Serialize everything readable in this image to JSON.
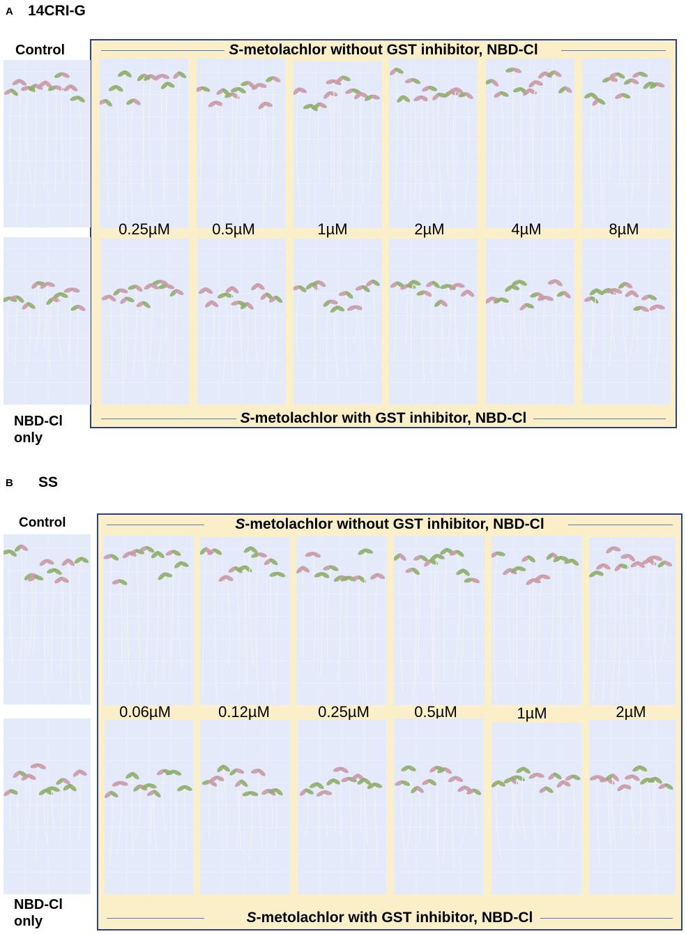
{
  "panels": [
    {
      "letter": "A",
      "title": "14CRI-G",
      "control_label": "Control",
      "nbd_label_line1": "NBD-Cl",
      "nbd_label_line2": "only",
      "top_box_title_prefix": "S",
      "top_box_title_rest": "-metolachlor without GST inhibitor, NBD-Cl",
      "bottom_box_title_prefix": "S",
      "bottom_box_title_rest": "-metolachlor with GST inhibitor, NBD-Cl",
      "concentrations": [
        "0.25µM",
        "0.5µM",
        "1µM",
        "2µM",
        "4µM",
        "8µM"
      ]
    },
    {
      "letter": "B",
      "title": "SS",
      "control_label": "Control",
      "nbd_label_line1": "NBD-Cl",
      "nbd_label_line2": "only",
      "top_box_title_prefix": "S",
      "top_box_title_rest": "-metolachlor without GST inhibitor, NBD-Cl",
      "bottom_box_title_prefix": "S",
      "bottom_box_title_rest": "-metolachlor with GST inhibitor, NBD-Cl",
      "concentrations": [
        "0.06µM",
        "0.12µM",
        "0.25µM",
        "0.5µM",
        "1µM",
        "2µM"
      ]
    }
  ],
  "colors": {
    "box_fill": "#faefc8",
    "box_border": "#2b3f7a",
    "plate_blue": "#7f8cb4",
    "root_white": "#f2f2f2",
    "cotyledon_green": "#8fae6a",
    "cotyledon_pink": "#c99aa6"
  }
}
